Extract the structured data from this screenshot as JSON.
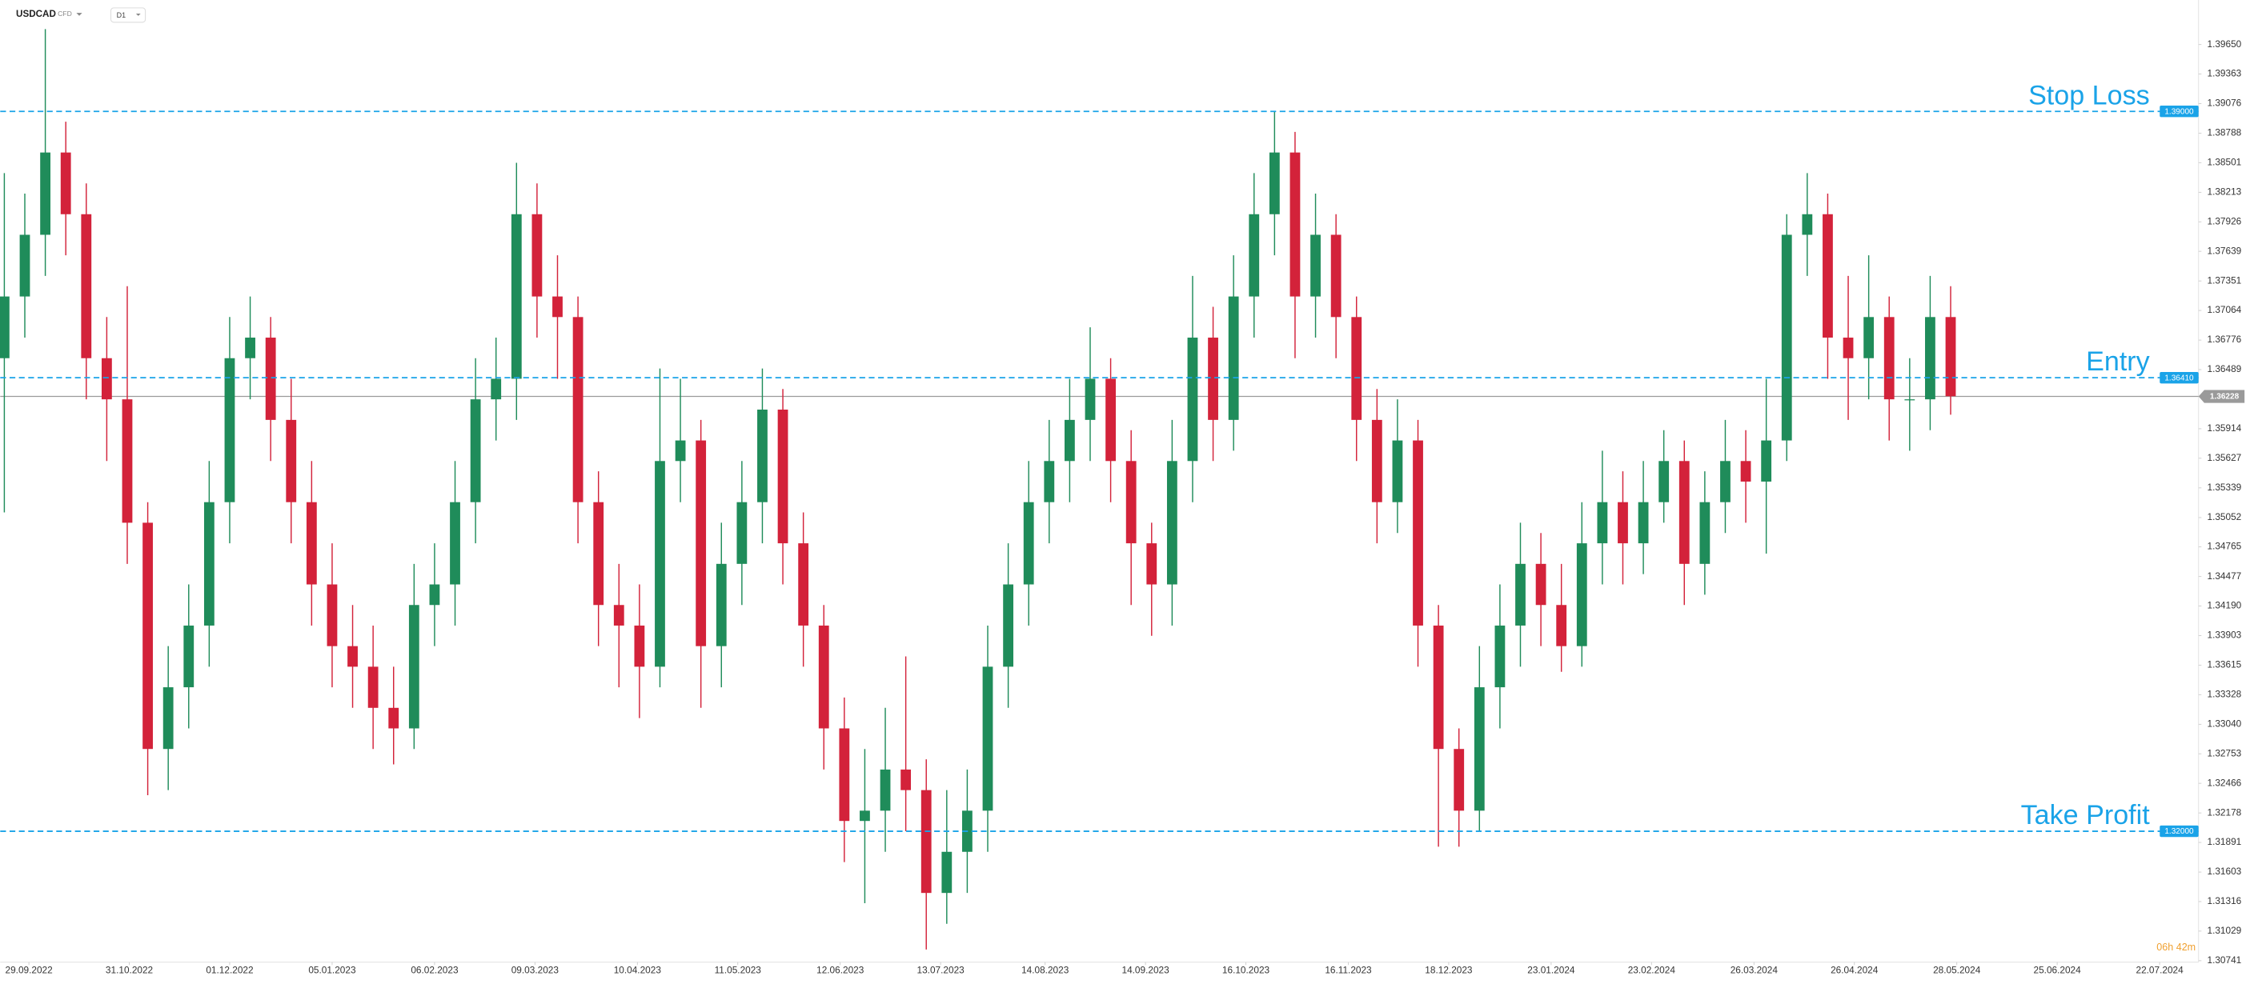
{
  "header": {
    "symbol": "USDCAD",
    "instrument": "CFD",
    "timeframe": "D1"
  },
  "countdown": "06h 42m",
  "chart_data": {
    "type": "candlestick",
    "up_color": "#1f8c5a",
    "down_color": "#d3223a",
    "open": [
      1.366,
      1.372,
      1.378,
      1.386,
      1.38,
      1.366,
      1.362,
      1.35,
      1.328,
      1.334,
      1.34,
      1.352,
      1.366,
      1.368,
      1.36,
      1.352,
      1.344,
      1.338,
      1.336,
      1.332,
      1.33,
      1.342,
      1.344,
      1.352,
      1.362,
      1.364,
      1.38,
      1.372,
      1.37,
      1.352,
      1.342,
      1.34,
      1.336,
      1.356,
      1.358,
      1.338,
      1.346,
      1.352,
      1.361,
      1.348,
      1.34,
      1.33,
      1.321,
      1.322,
      1.326,
      1.324,
      1.314,
      1.318,
      1.322,
      1.336,
      1.344,
      1.352,
      1.356,
      1.36,
      1.364,
      1.356,
      1.348,
      1.344,
      1.356,
      1.368,
      1.36,
      1.372,
      1.38,
      1.386,
      1.372,
      1.378,
      1.37,
      1.36,
      1.352,
      1.358,
      1.34,
      1.328,
      1.322,
      1.334,
      1.34,
      1.346,
      1.342,
      1.338,
      1.348,
      1.352,
      1.348,
      1.352,
      1.356,
      1.346,
      1.352,
      1.356,
      1.354,
      1.358,
      1.378,
      1.38,
      1.368,
      1.366,
      1.37,
      1.362,
      1.362,
      1.37
    ],
    "high": [
      1.384,
      1.382,
      1.398,
      1.389,
      1.383,
      1.37,
      1.373,
      1.352,
      1.338,
      1.344,
      1.356,
      1.37,
      1.372,
      1.37,
      1.364,
      1.356,
      1.348,
      1.342,
      1.34,
      1.336,
      1.346,
      1.348,
      1.356,
      1.366,
      1.368,
      1.385,
      1.383,
      1.376,
      1.372,
      1.355,
      1.346,
      1.344,
      1.365,
      1.364,
      1.36,
      1.35,
      1.356,
      1.365,
      1.363,
      1.351,
      1.342,
      1.333,
      1.328,
      1.332,
      1.337,
      1.327,
      1.324,
      1.326,
      1.34,
      1.348,
      1.356,
      1.36,
      1.364,
      1.369,
      1.366,
      1.359,
      1.35,
      1.36,
      1.374,
      1.371,
      1.376,
      1.384,
      1.39,
      1.388,
      1.382,
      1.38,
      1.372,
      1.363,
      1.362,
      1.36,
      1.342,
      1.33,
      1.338,
      1.344,
      1.35,
      1.349,
      1.346,
      1.352,
      1.357,
      1.355,
      1.356,
      1.359,
      1.358,
      1.355,
      1.36,
      1.359,
      1.364,
      1.38,
      1.384,
      1.382,
      1.374,
      1.376,
      1.372,
      1.366,
      1.374,
      1.373
    ],
    "low": [
      1.351,
      1.368,
      1.374,
      1.376,
      1.362,
      1.356,
      1.346,
      1.3235,
      1.324,
      1.33,
      1.336,
      1.348,
      1.362,
      1.356,
      1.348,
      1.34,
      1.334,
      1.332,
      1.328,
      1.3265,
      1.328,
      1.338,
      1.34,
      1.348,
      1.358,
      1.36,
      1.368,
      1.364,
      1.348,
      1.338,
      1.334,
      1.331,
      1.334,
      1.352,
      1.332,
      1.334,
      1.342,
      1.348,
      1.344,
      1.336,
      1.326,
      1.317,
      1.313,
      1.318,
      1.32,
      1.3085,
      1.311,
      1.314,
      1.318,
      1.332,
      1.34,
      1.348,
      1.352,
      1.356,
      1.352,
      1.342,
      1.339,
      1.34,
      1.352,
      1.356,
      1.357,
      1.368,
      1.376,
      1.366,
      1.368,
      1.366,
      1.356,
      1.348,
      1.349,
      1.336,
      1.3185,
      1.3185,
      1.32,
      1.33,
      1.336,
      1.338,
      1.3355,
      1.336,
      1.344,
      1.344,
      1.345,
      1.35,
      1.342,
      1.343,
      1.349,
      1.35,
      1.347,
      1.356,
      1.374,
      1.364,
      1.36,
      1.362,
      1.358,
      1.357,
      1.359,
      1.3605
    ],
    "close": [
      1.372,
      1.378,
      1.386,
      1.38,
      1.366,
      1.362,
      1.35,
      1.328,
      1.334,
      1.34,
      1.352,
      1.366,
      1.368,
      1.36,
      1.352,
      1.344,
      1.338,
      1.336,
      1.332,
      1.33,
      1.342,
      1.344,
      1.352,
      1.362,
      1.364,
      1.38,
      1.372,
      1.37,
      1.352,
      1.342,
      1.34,
      1.336,
      1.356,
      1.358,
      1.338,
      1.346,
      1.352,
      1.361,
      1.348,
      1.34,
      1.33,
      1.321,
      1.322,
      1.326,
      1.324,
      1.314,
      1.318,
      1.322,
      1.336,
      1.344,
      1.352,
      1.356,
      1.36,
      1.364,
      1.356,
      1.348,
      1.344,
      1.356,
      1.368,
      1.36,
      1.372,
      1.38,
      1.386,
      1.372,
      1.378,
      1.37,
      1.36,
      1.352,
      1.358,
      1.34,
      1.328,
      1.322,
      1.334,
      1.34,
      1.346,
      1.342,
      1.338,
      1.348,
      1.352,
      1.348,
      1.352,
      1.356,
      1.346,
      1.352,
      1.356,
      1.354,
      1.358,
      1.378,
      1.38,
      1.368,
      1.366,
      1.37,
      1.362,
      1.362,
      1.37,
      1.3623
    ],
    "xlim": [
      -0.2,
      107.1
    ],
    "xticks": [
      {
        "value": 1.2,
        "label": "29.09.2022"
      },
      {
        "value": 6.1,
        "label": "31.10.2022"
      },
      {
        "value": 11.0,
        "label": "01.12.2022"
      },
      {
        "value": 16.0,
        "label": "05.01.2023"
      },
      {
        "value": 21.0,
        "label": "06.02.2023"
      },
      {
        "value": 25.9,
        "label": "09.03.2023"
      },
      {
        "value": 30.9,
        "label": "10.04.2023"
      },
      {
        "value": 35.8,
        "label": "11.05.2023"
      },
      {
        "value": 40.8,
        "label": "12.06.2023"
      },
      {
        "value": 45.7,
        "label": "13.07.2023"
      },
      {
        "value": 50.8,
        "label": "14.08.2023"
      },
      {
        "value": 55.7,
        "label": "14.09.2023"
      },
      {
        "value": 60.6,
        "label": "16.10.2023"
      },
      {
        "value": 65.6,
        "label": "16.11.2023"
      },
      {
        "value": 70.5,
        "label": "18.12.2023"
      },
      {
        "value": 75.5,
        "label": "23.01.2024"
      },
      {
        "value": 80.4,
        "label": "23.02.2024"
      },
      {
        "value": 85.4,
        "label": "26.03.2024"
      },
      {
        "value": 90.3,
        "label": "26.04.2024"
      },
      {
        "value": 95.3,
        "label": "28.05.2024"
      },
      {
        "value": 100.2,
        "label": "25.06.2024"
      },
      {
        "value": 105.2,
        "label": "22.07.2024"
      }
    ],
    "ylim": [
      1.30727,
      1.40083
    ],
    "yticks": [
      {
        "value": 1.3965,
        "label": "1.39650"
      },
      1.39363,
      1.39076,
      1.38788,
      1.38501,
      1.38213,
      1.37926,
      1.37639,
      1.37351,
      1.37064,
      1.36776,
      1.36489,
      1.35914,
      1.35627,
      1.35339,
      {
        "value": 1.3505,
        "label": "1.35052"
      },
      1.34765,
      1.34477,
      {
        "value": 1.3419,
        "label": "1.34190"
      },
      1.33903,
      1.33615,
      1.33328,
      {
        "value": 1.3304,
        "label": "1.33040"
      },
      1.32753,
      1.32466,
      1.32178,
      1.31891,
      1.31603,
      1.31316,
      1.31029,
      1.30741
    ],
    "levels": [
      {
        "name": "Stop Loss",
        "value": 1.39,
        "value_label": "1.39000",
        "color": "#1aa3e8"
      },
      {
        "name": "Entry",
        "value": 1.3641,
        "value_label": "1.36410",
        "color": "#1aa3e8"
      },
      {
        "name": "Take Profit",
        "value": 1.32,
        "value_label": "1.32000",
        "color": "#1aa3e8"
      }
    ],
    "last_price": {
      "value": 1.36228,
      "color": "#9a9a9a"
    }
  }
}
